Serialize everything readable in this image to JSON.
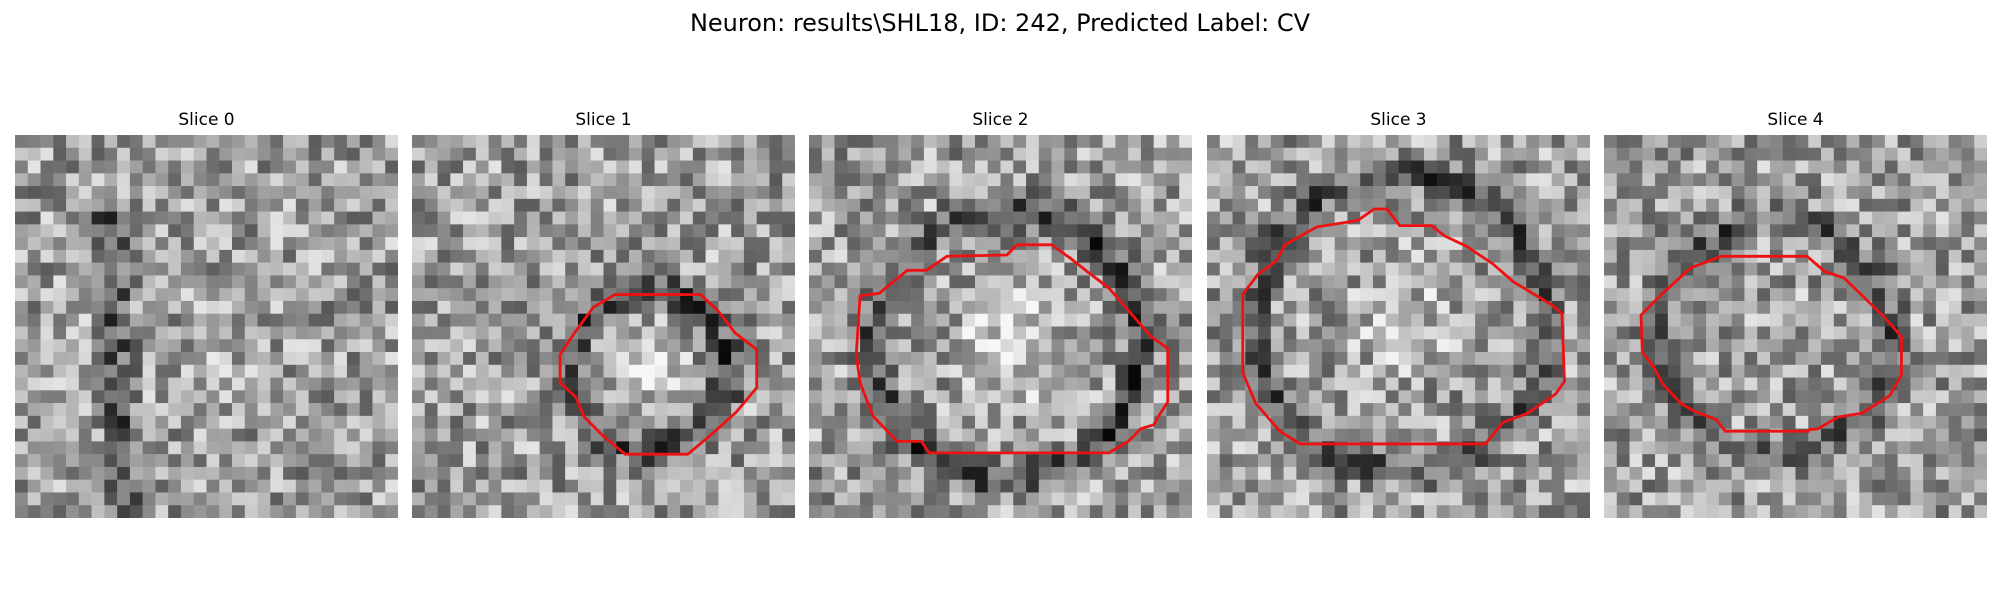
{
  "figure": {
    "title": "Neuron: results\\SHL18, ID: 242, Predicted Label: CV"
  },
  "panels": [
    {
      "title": "Slice 0",
      "has_outline": false,
      "seed": 11,
      "outline_color": "#ee1111"
    },
    {
      "title": "Slice 1",
      "has_outline": true,
      "seed": 23,
      "outline_color": "#ee1111"
    },
    {
      "title": "Slice 2",
      "has_outline": true,
      "seed": 37,
      "outline_color": "#ee1111"
    },
    {
      "title": "Slice 3",
      "has_outline": true,
      "seed": 41,
      "outline_color": "#ee1111"
    },
    {
      "title": "Slice 4",
      "has_outline": true,
      "seed": 53,
      "outline_color": "#ee1111"
    }
  ],
  "colors": {
    "background": "#ffffff",
    "image_colormap": "gray",
    "outline": "#ee1111"
  }
}
